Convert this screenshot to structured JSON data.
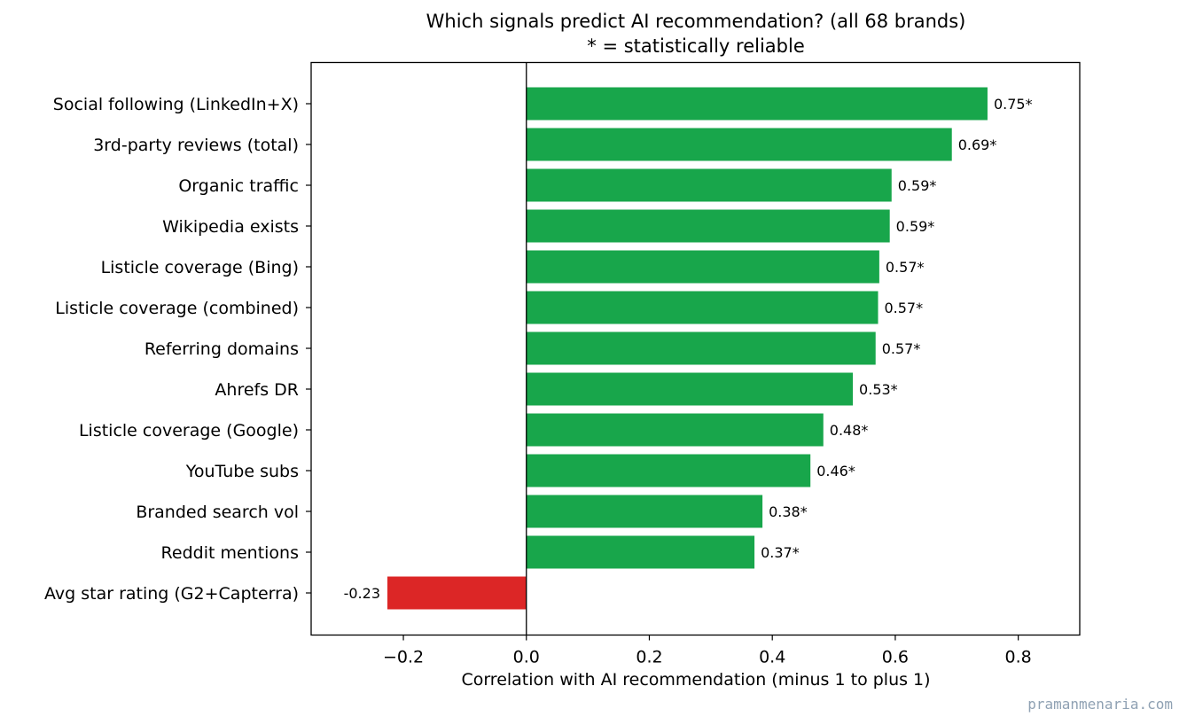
{
  "chart_data": {
    "type": "bar",
    "orientation": "horizontal",
    "title": "Which signals predict AI recommendation? (all 68 brands)",
    "subtitle": "* = statistically reliable",
    "xlabel": "Correlation with AI recommendation (minus 1 to plus 1)",
    "ylabel": "",
    "xlim": [
      -0.35,
      0.9
    ],
    "xticks": [
      -0.2,
      0.0,
      0.2,
      0.4,
      0.6,
      0.8
    ],
    "xtick_labels": [
      "−0.2",
      "0.0",
      "0.2",
      "0.4",
      "0.6",
      "0.8"
    ],
    "grid": false,
    "zero_line": true,
    "categories": [
      "Social following (LinkedIn+X)",
      "3rd-party reviews (total)",
      "Organic traffic",
      "Wikipedia exists",
      "Listicle coverage (Bing)",
      "Listicle coverage (combined)",
      "Referring domains",
      "Ahrefs DR",
      "Listicle coverage (Google)",
      "YouTube subs",
      "Branded search vol",
      "Reddit mentions",
      "Avg star rating (G2+Capterra)"
    ],
    "values": [
      0.75,
      0.692,
      0.594,
      0.591,
      0.574,
      0.572,
      0.568,
      0.531,
      0.483,
      0.462,
      0.384,
      0.371,
      -0.226
    ],
    "data_labels": [
      "0.75*",
      "0.69*",
      "0.59*",
      "0.59*",
      "0.57*",
      "0.57*",
      "0.57*",
      "0.53*",
      "0.48*",
      "0.46*",
      "0.38*",
      "0.37*",
      "-0.23"
    ],
    "colors": {
      "positive": "#18a64b",
      "negative": "#dc2626",
      "axis": "#000000"
    }
  },
  "watermark": "pramanmenaria.com"
}
